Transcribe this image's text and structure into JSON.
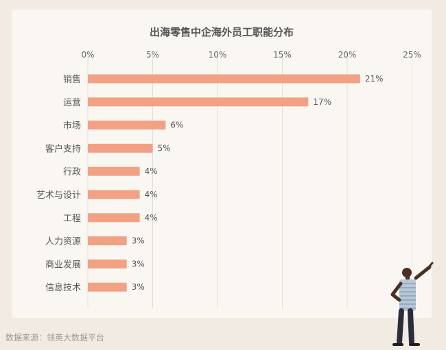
{
  "chart_data": {
    "type": "bar",
    "orientation": "horizontal",
    "title": "出海零售中企海外员工职能分布",
    "categories": [
      "销售",
      "运营",
      "市场",
      "客户支持",
      "行政",
      "艺术与设计",
      "工程",
      "人力资源",
      "商业发展",
      "信息技术"
    ],
    "values": [
      21,
      17,
      6,
      5,
      4,
      4,
      4,
      3,
      3,
      3
    ],
    "value_labels": [
      "21%",
      "17%",
      "6%",
      "5%",
      "4%",
      "4%",
      "4%",
      "3%",
      "3%",
      "3%"
    ],
    "x_ticks": [
      0,
      5,
      10,
      15,
      20,
      25
    ],
    "x_tick_labels": [
      "0%",
      "5%",
      "10%",
      "15%",
      "20%",
      "25%"
    ],
    "xlim": [
      0,
      25
    ],
    "xlabel": "",
    "ylabel": "",
    "axis_position": "top",
    "grid": true,
    "bar_color": "#f2a184",
    "grid_color": "#e3ddd5"
  },
  "footer": {
    "source": "数据来源：领英大数据平台"
  },
  "colors": {
    "page_background": "#f1ebe3",
    "card_background": "#faf7f2",
    "text": "#555555"
  }
}
